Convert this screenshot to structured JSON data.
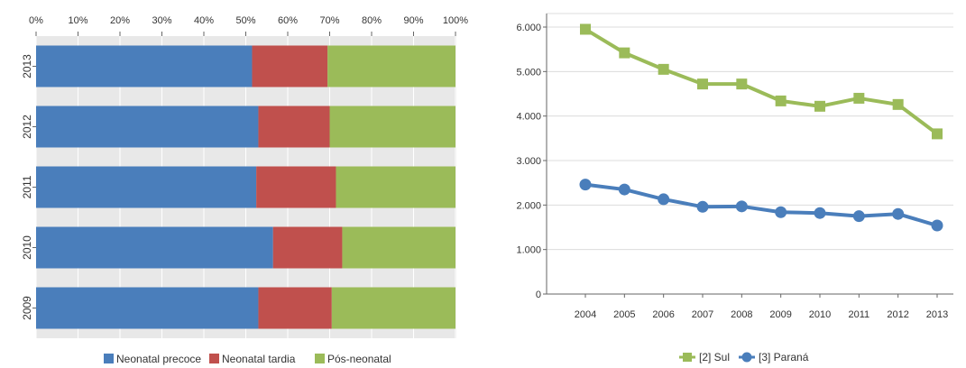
{
  "chart_data": [
    {
      "type": "bar",
      "orientation": "horizontal",
      "stacked": "percent",
      "categories": [
        "2013",
        "2012",
        "2011",
        "2010",
        "2009"
      ],
      "series": [
        {
          "name": "Neonatal precoce",
          "color": "#4a7ebb",
          "values": [
            51.5,
            53.0,
            52.5,
            56.5,
            53.0
          ]
        },
        {
          "name": "Neonatal tardia",
          "color": "#c0504d",
          "values": [
            18.0,
            17.0,
            19.0,
            16.5,
            17.5
          ]
        },
        {
          "name": "Pós-neonatal",
          "color": "#9bbb59",
          "values": [
            30.5,
            30.0,
            28.5,
            27.0,
            29.5
          ]
        }
      ],
      "xticks": [
        "0%",
        "10%",
        "20%",
        "30%",
        "40%",
        "50%",
        "60%",
        "70%",
        "80%",
        "90%",
        "100%"
      ],
      "xlim": [
        0,
        100
      ],
      "axis_position": "top",
      "grid": true,
      "legend": "bottom"
    },
    {
      "type": "line",
      "x": [
        "2004",
        "2005",
        "2006",
        "2007",
        "2008",
        "2009",
        "2010",
        "2011",
        "2012",
        "2013"
      ],
      "series": [
        {
          "name": "[2] Sul",
          "color": "#9bbb59",
          "marker": "square",
          "values": [
            5950,
            5420,
            5050,
            4720,
            4720,
            4340,
            4220,
            4400,
            4260,
            3600
          ]
        },
        {
          "name": "[3] Paraná",
          "color": "#4a7ebb",
          "marker": "circle",
          "values": [
            2460,
            2350,
            2130,
            1960,
            1970,
            1840,
            1820,
            1750,
            1800,
            1540
          ]
        }
      ],
      "yticks": [
        "0",
        "1.000",
        "2.000",
        "3.000",
        "4.000",
        "5.000",
        "6.000"
      ],
      "ylim": [
        0,
        6000
      ],
      "grid": true,
      "legend": "bottom"
    }
  ]
}
